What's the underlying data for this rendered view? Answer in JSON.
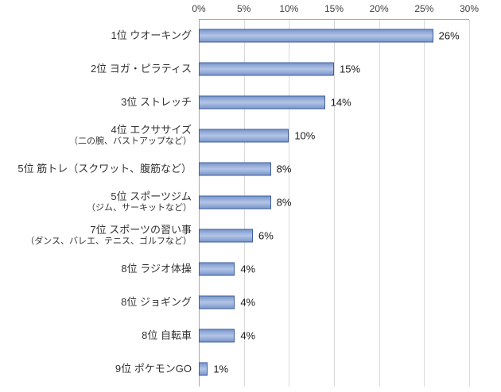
{
  "chart_data": {
    "type": "bar",
    "orientation": "horizontal",
    "title": "",
    "grid": true,
    "legend": false,
    "x_axis": {
      "position": "top",
      "min": 0,
      "max": 30,
      "ticks": [
        "0%",
        "5%",
        "10%",
        "15%",
        "20%",
        "25%",
        "30%"
      ]
    },
    "bars": [
      {
        "label": "1位 ウオーキング",
        "note": "",
        "value": 26,
        "value_label": "26%"
      },
      {
        "label": "2位 ヨガ・ピラティス",
        "note": "",
        "value": 15,
        "value_label": "15%"
      },
      {
        "label": "3位 ストレッチ",
        "note": "",
        "value": 14,
        "value_label": "14%"
      },
      {
        "label": "4位 エクササイズ",
        "note": "（二の腕、バストアップなど）",
        "value": 10,
        "value_label": "10%"
      },
      {
        "label": "5位 筋トレ（スクワット、腹筋など）",
        "note": "",
        "value": 8,
        "value_label": "8%"
      },
      {
        "label": "5位 スポーツジム",
        "note": "（ジム、サーキットなど）",
        "value": 8,
        "value_label": "8%"
      },
      {
        "label": "7位 スポーツの習い事",
        "note": "（ダンス、バレエ、テニス、ゴルフなど）",
        "value": 6,
        "value_label": "6%"
      },
      {
        "label": "8位 ラジオ体操",
        "note": "",
        "value": 4,
        "value_label": "4%"
      },
      {
        "label": "8位 ジョギング",
        "note": "",
        "value": 4,
        "value_label": "4%"
      },
      {
        "label": "8位 自転車",
        "note": "",
        "value": 4,
        "value_label": "4%"
      },
      {
        "label": "9位 ポケモンGO",
        "note": "",
        "value": 1,
        "value_label": "1%"
      }
    ],
    "colors": {
      "bar_fill": "#7b97cc",
      "bar_fill_highlight": "#b3c5e6",
      "bar_border": "#3f5f9e",
      "gridline": "#d9d9d9",
      "axis_line": "#a9a9a9",
      "text": "#333333"
    }
  }
}
